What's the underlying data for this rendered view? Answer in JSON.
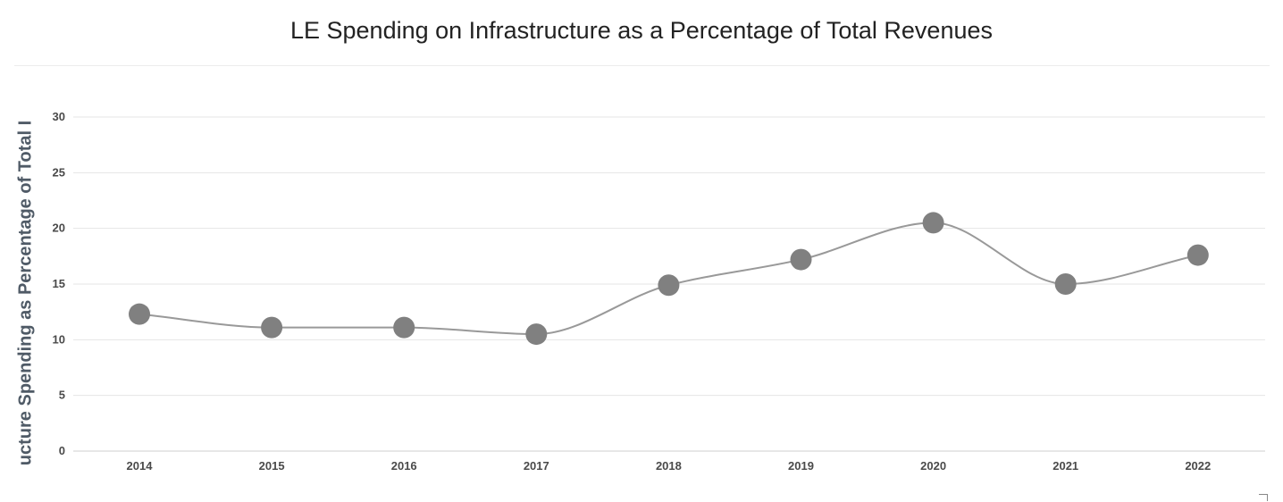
{
  "chart_data": {
    "type": "line",
    "title": "LE Spending on Infrastructure as a Percentage of Total Revenues",
    "ylabel": "LE Infrastructure Spending as Percentage of Total Revenues",
    "ylabel_visible": "ucture Spending as Percentage of Total I",
    "xlabel": "",
    "categories": [
      "2014",
      "2015",
      "2016",
      "2017",
      "2018",
      "2019",
      "2020",
      "2021",
      "2022"
    ],
    "series": [
      {
        "name": "LE Spending on Infrastructure",
        "values": [
          12.3,
          11.1,
          11.1,
          10.5,
          14.9,
          17.2,
          20.5,
          15.0,
          17.6
        ]
      }
    ],
    "ylim": [
      0,
      30
    ],
    "yticks": [
      0,
      5,
      10,
      15,
      20,
      25,
      30
    ],
    "grid": true,
    "line_color": "#999999",
    "marker_color": "#808080",
    "smooth": true
  }
}
